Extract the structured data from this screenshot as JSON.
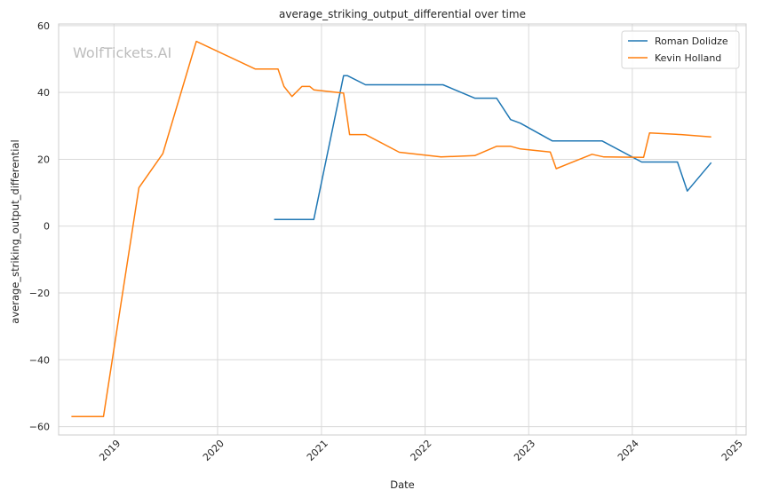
{
  "chart_data": {
    "type": "line",
    "title": "average_striking_output_differential over time",
    "xlabel": "Date",
    "ylabel": "average_striking_output_differential",
    "watermark": "WolfTickets.AI",
    "xlim": [
      "2018-06-20",
      "2025-02-05"
    ],
    "ylim": [
      -62.5,
      60.5
    ],
    "x_ticks": [
      {
        "date": "2019-01-01",
        "label": "2019"
      },
      {
        "date": "2020-01-01",
        "label": "2020"
      },
      {
        "date": "2021-01-01",
        "label": "2021"
      },
      {
        "date": "2022-01-01",
        "label": "2022"
      },
      {
        "date": "2023-01-01",
        "label": "2023"
      },
      {
        "date": "2024-01-01",
        "label": "2024"
      },
      {
        "date": "2025-01-01",
        "label": "2025"
      }
    ],
    "y_ticks": [
      {
        "value": -60,
        "label": "−60"
      },
      {
        "value": -40,
        "label": "−40"
      },
      {
        "value": -20,
        "label": "−20"
      },
      {
        "value": 0,
        "label": "0"
      },
      {
        "value": 20,
        "label": "20"
      },
      {
        "value": 40,
        "label": "40"
      },
      {
        "value": 60,
        "label": "60"
      }
    ],
    "grid": true,
    "legend_position": "top-right",
    "series": [
      {
        "name": "Roman Dolidze",
        "color": "#1f77b4",
        "points": [
          {
            "x": "2020-07-18",
            "y": 2.0
          },
          {
            "x": "2020-12-05",
            "y": 2.0
          },
          {
            "x": "2021-03-20",
            "y": 45.0
          },
          {
            "x": "2021-04-03",
            "y": 45.0
          },
          {
            "x": "2021-06-05",
            "y": 42.3
          },
          {
            "x": "2022-03-05",
            "y": 42.3
          },
          {
            "x": "2022-06-25",
            "y": 38.3
          },
          {
            "x": "2022-09-10",
            "y": 38.3
          },
          {
            "x": "2022-10-29",
            "y": 31.9
          },
          {
            "x": "2022-12-03",
            "y": 30.8
          },
          {
            "x": "2023-03-25",
            "y": 25.5
          },
          {
            "x": "2023-09-16",
            "y": 25.5
          },
          {
            "x": "2024-02-03",
            "y": 19.2
          },
          {
            "x": "2024-06-08",
            "y": 19.2
          },
          {
            "x": "2024-07-13",
            "y": 10.5
          },
          {
            "x": "2024-10-05",
            "y": 19.0
          }
        ]
      },
      {
        "name": "Kevin Holland",
        "color": "#ff7f0e",
        "points": [
          {
            "x": "2018-08-04",
            "y": -57.0
          },
          {
            "x": "2018-11-25",
            "y": -57.0
          },
          {
            "x": "2019-03-30",
            "y": 11.5
          },
          {
            "x": "2019-06-22",
            "y": 21.7
          },
          {
            "x": "2019-10-18",
            "y": 55.3
          },
          {
            "x": "2020-05-13",
            "y": 47.0
          },
          {
            "x": "2020-08-01",
            "y": 47.0
          },
          {
            "x": "2020-08-22",
            "y": 41.8
          },
          {
            "x": "2020-09-19",
            "y": 38.8
          },
          {
            "x": "2020-10-24",
            "y": 41.8
          },
          {
            "x": "2020-11-21",
            "y": 41.8
          },
          {
            "x": "2020-12-05",
            "y": 40.8
          },
          {
            "x": "2021-03-20",
            "y": 39.8
          },
          {
            "x": "2021-04-10",
            "y": 27.4
          },
          {
            "x": "2021-06-05",
            "y": 27.4
          },
          {
            "x": "2021-10-02",
            "y": 22.1
          },
          {
            "x": "2022-02-26",
            "y": 20.7
          },
          {
            "x": "2022-06-25",
            "y": 21.1
          },
          {
            "x": "2022-09-10",
            "y": 23.9
          },
          {
            "x": "2022-10-29",
            "y": 23.9
          },
          {
            "x": "2022-12-03",
            "y": 23.1
          },
          {
            "x": "2023-03-18",
            "y": 22.2
          },
          {
            "x": "2023-04-08",
            "y": 17.2
          },
          {
            "x": "2023-08-12",
            "y": 21.5
          },
          {
            "x": "2023-09-23",
            "y": 20.7
          },
          {
            "x": "2024-02-10",
            "y": 20.6
          },
          {
            "x": "2024-03-02",
            "y": 27.9
          },
          {
            "x": "2024-06-22",
            "y": 27.4
          },
          {
            "x": "2024-10-05",
            "y": 26.7
          }
        ]
      }
    ]
  }
}
